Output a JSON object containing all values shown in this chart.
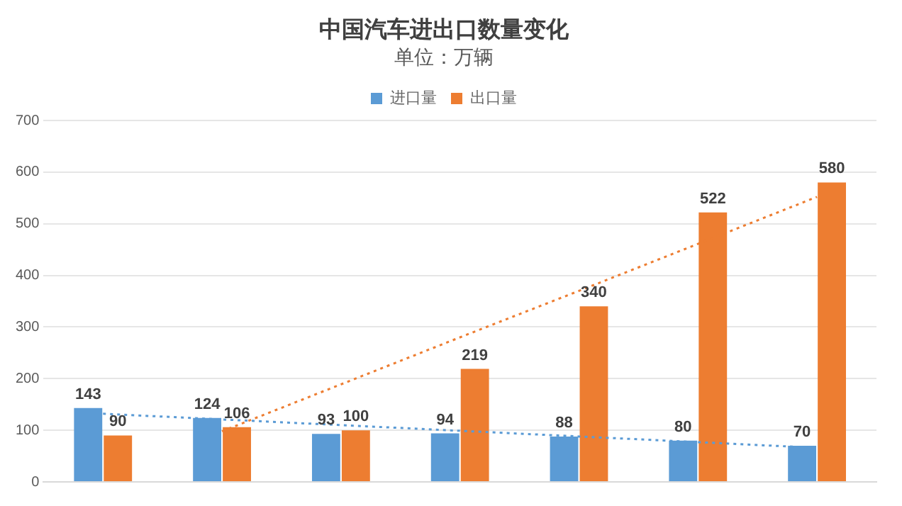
{
  "chart_data": {
    "type": "bar",
    "title": "中国汽车进出口数量变化",
    "subtitle": "单位：万辆",
    "categories": [
      null,
      null,
      null,
      null,
      null,
      null,
      null
    ],
    "series": [
      {
        "name": "进口量",
        "color": "#5b9bd5",
        "values": [
          143,
          124,
          93,
          94,
          88,
          80,
          70
        ],
        "value_labels": [
          "143",
          "124",
          "93",
          "94",
          "88",
          "80",
          "70"
        ]
      },
      {
        "name": "出口量",
        "color": "#ed7d31",
        "values": [
          90,
          106,
          100,
          219,
          340,
          522,
          580
        ],
        "value_labels": [
          "90",
          "106",
          "100",
          "219",
          "340",
          "522",
          "580"
        ]
      },
      {
        "type": "line",
        "color": "#5b9bd5",
        "line_style": "dotted",
        "values": [
          132,
          121,
          110,
          99,
          88,
          77,
          66
        ]
      },
      {
        "type": "line",
        "color": "#ed7d31",
        "line_style": "dotted",
        "values": [
          null,
          98,
          189,
          280,
          370,
          461,
          552
        ]
      }
    ],
    "ylim": [
      0,
      700
    ],
    "yticks": [
      0,
      100,
      200,
      300,
      400,
      500,
      600,
      700
    ],
    "grid": "y",
    "legend": "top",
    "tick_labels": "y"
  }
}
